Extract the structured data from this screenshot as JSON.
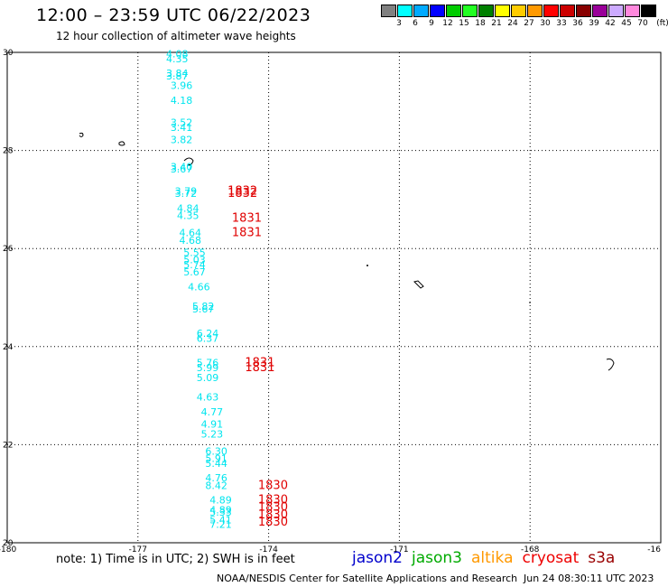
{
  "header": {
    "title": "12:00 – 23:59 UTC 06/22/2023",
    "subtitle": "12 hour collection of altimeter wave heights"
  },
  "color_scale": {
    "unit": "(ft)",
    "colors": [
      "#808080",
      "#00ffff",
      "#00aaff",
      "#0000ff",
      "#00cc00",
      "#22ff22",
      "#008000",
      "#ffff00",
      "#ffcc00",
      "#ff9900",
      "#ff0000",
      "#cc0000",
      "#880000",
      "#990099",
      "#ccaaff",
      "#ff88dd",
      "#000000"
    ],
    "labels": [
      "3",
      "6",
      "9",
      "12",
      "15",
      "18",
      "21",
      "24",
      "27",
      "30",
      "33",
      "36",
      "39",
      "42",
      "45",
      "70"
    ]
  },
  "map": {
    "lon_labels": [
      "-180",
      "-177",
      "-174",
      "-171",
      "-168",
      "-16"
    ],
    "lat_labels": [
      "30",
      "28",
      "26",
      "24",
      "22",
      "20"
    ]
  },
  "chart_data": {
    "type": "scatter",
    "x_range": [
      -180,
      -165
    ],
    "y_range": [
      20,
      30
    ],
    "swh_feet": [
      {
        "lon": -176.1,
        "lat": 29.9,
        "text": "4.08",
        "color": "#00e5ee"
      },
      {
        "lon": -176.1,
        "lat": 29.8,
        "text": "4.35",
        "color": "#00e5ee"
      },
      {
        "lon": -176.1,
        "lat": 29.5,
        "text": "3.84",
        "color": "#00e5ee"
      },
      {
        "lon": -176.1,
        "lat": 29.45,
        "text": "3.87",
        "color": "#00e5ee"
      },
      {
        "lon": -176.0,
        "lat": 29.25,
        "text": "3.96",
        "color": "#00e5ee"
      },
      {
        "lon": -176.0,
        "lat": 28.95,
        "text": "4.18",
        "color": "#00e5ee"
      },
      {
        "lon": -176.0,
        "lat": 28.5,
        "text": "3.52",
        "color": "#00e5ee"
      },
      {
        "lon": -176.0,
        "lat": 28.4,
        "text": "3.41",
        "color": "#00e5ee"
      },
      {
        "lon": -176.0,
        "lat": 28.15,
        "text": "3.82",
        "color": "#00e5ee"
      },
      {
        "lon": -176.0,
        "lat": 27.6,
        "text": "3.40",
        "color": "#00e5ee"
      },
      {
        "lon": -176.0,
        "lat": 27.55,
        "text": "3.67",
        "color": "#00e5ee"
      },
      {
        "lon": -175.9,
        "lat": 27.1,
        "text": "3.79",
        "color": "#00e5ee"
      },
      {
        "lon": -175.9,
        "lat": 27.05,
        "text": "3.72",
        "color": "#00e5ee"
      },
      {
        "lon": -175.85,
        "lat": 26.75,
        "text": "4.84",
        "color": "#00e5ee"
      },
      {
        "lon": -175.85,
        "lat": 26.6,
        "text": "4.35",
        "color": "#00e5ee"
      },
      {
        "lon": -175.8,
        "lat": 26.25,
        "text": "4.64",
        "color": "#00e5ee"
      },
      {
        "lon": -175.8,
        "lat": 26.1,
        "text": "4.68",
        "color": "#00e5ee"
      },
      {
        "lon": -175.7,
        "lat": 25.85,
        "text": "5.55",
        "color": "#00e5ee"
      },
      {
        "lon": -175.7,
        "lat": 25.7,
        "text": "5.03",
        "color": "#00e5ee"
      },
      {
        "lon": -175.7,
        "lat": 25.6,
        "text": "5.74",
        "color": "#00e5ee"
      },
      {
        "lon": -175.7,
        "lat": 25.45,
        "text": "5.67",
        "color": "#00e5ee"
      },
      {
        "lon": -175.6,
        "lat": 25.15,
        "text": "4.66",
        "color": "#00e5ee"
      },
      {
        "lon": -175.5,
        "lat": 24.75,
        "text": "5.82",
        "color": "#00e5ee"
      },
      {
        "lon": -175.5,
        "lat": 24.7,
        "text": "5.67",
        "color": "#00e5ee"
      },
      {
        "lon": -175.4,
        "lat": 24.2,
        "text": "6.24",
        "color": "#00e5ee"
      },
      {
        "lon": -175.4,
        "lat": 24.1,
        "text": "6.37",
        "color": "#00e5ee"
      },
      {
        "lon": -175.4,
        "lat": 23.6,
        "text": "5.76",
        "color": "#00e5ee"
      },
      {
        "lon": -175.4,
        "lat": 23.5,
        "text": "5.99",
        "color": "#00e5ee"
      },
      {
        "lon": -175.4,
        "lat": 23.3,
        "text": "5.09",
        "color": "#00e5ee"
      },
      {
        "lon": -175.4,
        "lat": 22.9,
        "text": "4.63",
        "color": "#00e5ee"
      },
      {
        "lon": -175.3,
        "lat": 22.6,
        "text": "4.77",
        "color": "#00e5ee"
      },
      {
        "lon": -175.3,
        "lat": 22.35,
        "text": "4.91",
        "color": "#00e5ee"
      },
      {
        "lon": -175.3,
        "lat": 22.15,
        "text": "5.23",
        "color": "#00e5ee"
      },
      {
        "lon": -175.2,
        "lat": 21.8,
        "text": "6.30",
        "color": "#00e5ee"
      },
      {
        "lon": -175.2,
        "lat": 21.65,
        "text": "5.91",
        "color": "#00e5ee"
      },
      {
        "lon": -175.2,
        "lat": 21.55,
        "text": "5.44",
        "color": "#00e5ee"
      },
      {
        "lon": -175.2,
        "lat": 21.25,
        "text": "4.76",
        "color": "#00e5ee"
      },
      {
        "lon": -175.2,
        "lat": 21.1,
        "text": "8.42",
        "color": "#00e5ee"
      },
      {
        "lon": -175.1,
        "lat": 20.8,
        "text": "4.89",
        "color": "#00e5ee"
      },
      {
        "lon": -175.1,
        "lat": 20.6,
        "text": "4.89",
        "color": "#00e5ee"
      },
      {
        "lon": -175.1,
        "lat": 20.55,
        "text": "5.33",
        "color": "#00e5ee"
      },
      {
        "lon": -175.1,
        "lat": 20.4,
        "text": "5.41",
        "color": "#00e5ee"
      },
      {
        "lon": -175.1,
        "lat": 20.3,
        "text": "7.21",
        "color": "#00e5ee"
      }
    ],
    "time_labels": [
      {
        "lon": -174.6,
        "lat": 27.1,
        "text": "1832",
        "color": "#e00000"
      },
      {
        "lon": -174.6,
        "lat": 27.05,
        "text": "1832",
        "color": "#e00000"
      },
      {
        "lon": -174.5,
        "lat": 26.55,
        "text": "1831",
        "color": "#e00000"
      },
      {
        "lon": -174.5,
        "lat": 26.25,
        "text": "1831",
        "color": "#e00000"
      },
      {
        "lon": -174.2,
        "lat": 23.6,
        "text": "1831",
        "color": "#e00000"
      },
      {
        "lon": -174.2,
        "lat": 23.5,
        "text": "1831",
        "color": "#e00000"
      },
      {
        "lon": -173.9,
        "lat": 21.1,
        "text": "1830",
        "color": "#e00000"
      },
      {
        "lon": -173.9,
        "lat": 20.8,
        "text": "1830",
        "color": "#e00000"
      },
      {
        "lon": -173.9,
        "lat": 20.65,
        "text": "1830",
        "color": "#e00000"
      },
      {
        "lon": -173.9,
        "lat": 20.5,
        "text": "1830",
        "color": "#e00000"
      },
      {
        "lon": -173.9,
        "lat": 20.35,
        "text": "1830",
        "color": "#e00000"
      }
    ]
  },
  "footer": {
    "note": "note:  1) Time is in UTC; 2) SWH is in feet",
    "satellites": [
      {
        "name": "jason2",
        "color": "#0000cc"
      },
      {
        "name": "jason3",
        "color": "#00aa00"
      },
      {
        "name": "altika",
        "color": "#ff9900"
      },
      {
        "name": "cryosat",
        "color": "#ee0000"
      },
      {
        "name": "s3a",
        "color": "#990000"
      }
    ],
    "credit": "NOAA/NESDIS Center for Satellite Applications and Research",
    "timestamp": "Jun 24 08:30:11 UTC 2023"
  }
}
